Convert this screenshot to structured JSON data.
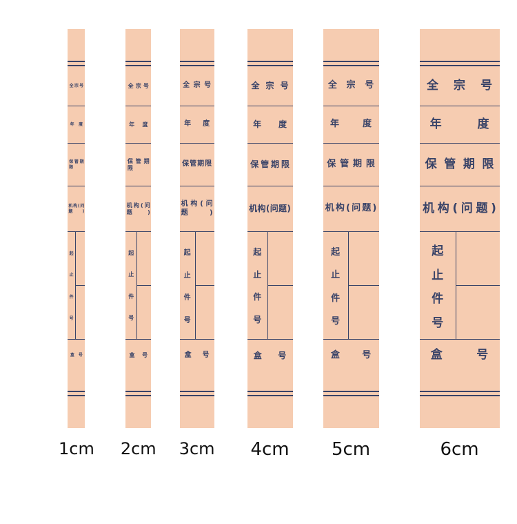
{
  "colors": {
    "page_bg": "#ffffff",
    "strip_bg": "#f6ccb1",
    "ink": "#394368",
    "size_label": "#111111"
  },
  "strip_fields": {
    "fonds": "全宗号",
    "year": "年度",
    "retention": "保管期限",
    "org": "机构(问题)",
    "start_end": [
      "起",
      "止",
      "件",
      "号"
    ],
    "box": "盒号"
  },
  "sizes": [
    {
      "label": "1cm"
    },
    {
      "label": "2cm"
    },
    {
      "label": "3cm"
    },
    {
      "label": "4cm"
    },
    {
      "label": "5cm"
    },
    {
      "label": "6cm"
    }
  ]
}
